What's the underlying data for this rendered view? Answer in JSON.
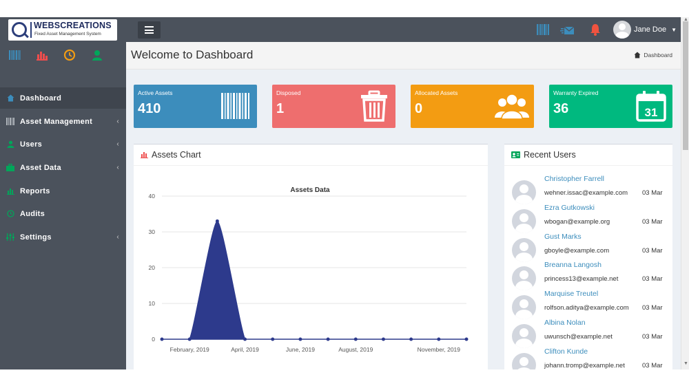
{
  "brand": {
    "name": "WEBSCREATIONS",
    "tagline": "Fixed Asset Management System"
  },
  "topbar": {
    "menu_icon": "hamburger-icon",
    "icons": [
      "barcode-icon",
      "mail-send-icon",
      "bell-icon"
    ],
    "user_name": "Jane Doe"
  },
  "sidebar": {
    "quick_icons": [
      "barcode-icon",
      "bar-chart-icon",
      "clock-icon",
      "user-icon"
    ],
    "items": [
      {
        "label": "Dashboard",
        "icon": "home-icon",
        "has_children": false,
        "active": true
      },
      {
        "label": "Asset Management",
        "icon": "barcode-icon",
        "has_children": true,
        "active": false
      },
      {
        "label": "Users",
        "icon": "user-icon",
        "has_children": true,
        "active": false
      },
      {
        "label": "Asset Data",
        "icon": "briefcase-icon",
        "has_children": true,
        "active": false
      },
      {
        "label": "Reports",
        "icon": "bar-chart-icon",
        "has_children": false,
        "active": false
      },
      {
        "label": "Audits",
        "icon": "clock-icon",
        "has_children": false,
        "active": false
      },
      {
        "label": "Settings",
        "icon": "sliders-icon",
        "has_children": true,
        "active": false
      }
    ]
  },
  "page": {
    "title": "Welcome to Dashboard",
    "breadcrumb": "Dashboard"
  },
  "stats": [
    {
      "label": "Active Assets",
      "value": "410",
      "icon": "barcode-icon",
      "color": "#3c8dbc"
    },
    {
      "label": "Disposed",
      "value": "1",
      "icon": "trash-icon",
      "color": "#ee6e6e"
    },
    {
      "label": "Allocated Assets",
      "value": "0",
      "icon": "users-icon",
      "color": "#f39c12"
    },
    {
      "label": "Warranty Expired",
      "value": "36",
      "icon": "calendar-icon",
      "color": "#00b97f",
      "icon_text": "31"
    }
  ],
  "chart_panel": {
    "title": "Assets Chart"
  },
  "chart_data": {
    "type": "area",
    "title": "Assets Data",
    "x": [
      "2019-01",
      "2019-02",
      "2019-03",
      "2019-04",
      "2019-05",
      "2019-06",
      "2019-07",
      "2019-08",
      "2019-09",
      "2019-10",
      "2019-11",
      "2019-12"
    ],
    "series": [
      {
        "values": [
          0,
          0,
          33,
          0,
          0,
          0,
          0,
          0,
          0,
          0,
          0,
          0
        ],
        "color": "#2d3a8c"
      }
    ],
    "x_tick_labels": [
      "February, 2019",
      "April, 2019",
      "June, 2019",
      "August, 2019",
      "November, 2019"
    ],
    "ylim": [
      0,
      40
    ],
    "y_ticks": [
      0,
      10,
      20,
      30,
      40
    ],
    "grid": true,
    "legend": "none"
  },
  "recent_users": {
    "title": "Recent Users",
    "items": [
      {
        "name": "Christopher Farrell",
        "email": "wehner.issac@example.com",
        "date": "03 Mar"
      },
      {
        "name": "Ezra Gutkowski",
        "email": "wbogan@example.org",
        "date": "03 Mar"
      },
      {
        "name": "Gust Marks",
        "email": "gboyle@example.com",
        "date": "03 Mar"
      },
      {
        "name": "Breanna Langosh",
        "email": "princess13@example.net",
        "date": "03 Mar"
      },
      {
        "name": "Marquise Treutel",
        "email": "rolfson.aditya@example.com",
        "date": "03 Mar"
      },
      {
        "name": "Albina Nolan",
        "email": "uwunsch@example.net",
        "date": "03 Mar"
      },
      {
        "name": "Clifton Kunde",
        "email": "johann.tromp@example.net",
        "date": "03 Mar"
      }
    ]
  }
}
